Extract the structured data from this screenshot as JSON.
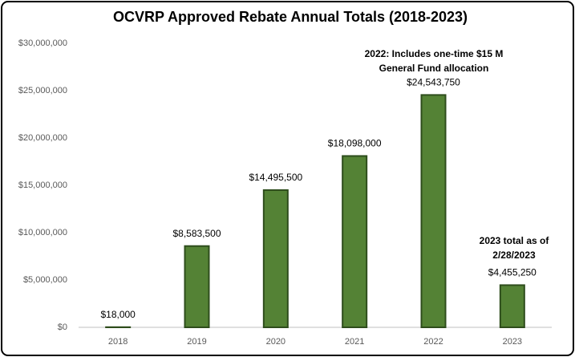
{
  "chart_data": {
    "type": "bar",
    "title": "OCVRP Approved Rebate Annual Totals (2018-2023)",
    "categories": [
      "2018",
      "2019",
      "2020",
      "2021",
      "2022",
      "2023"
    ],
    "values": [
      18000,
      8583500,
      14495500,
      18098000,
      24543750,
      4455250
    ],
    "value_labels": [
      "$18,000",
      "$8,583,500",
      "$14,495,500",
      "$18,098,000",
      "$24,543,750",
      "$4,455,250"
    ],
    "color": "#548235",
    "ylim": [
      0,
      30000000
    ],
    "yticks": [
      {
        "value": 0,
        "label": "$0"
      },
      {
        "value": 5000000,
        "label": "$5,000,000"
      },
      {
        "value": 10000000,
        "label": "$10,000,000"
      },
      {
        "value": 15000000,
        "label": "$15,000,000"
      },
      {
        "value": 20000000,
        "label": "$20,000,000"
      },
      {
        "value": 25000000,
        "label": "$25,000,000"
      },
      {
        "value": 30000000,
        "label": "$30,000,000"
      }
    ],
    "annotations": [
      [
        "2022: Includes one-time $15 M",
        "General Fund allocation"
      ],
      [
        "2023 total as of",
        "2/28/2023"
      ]
    ]
  }
}
